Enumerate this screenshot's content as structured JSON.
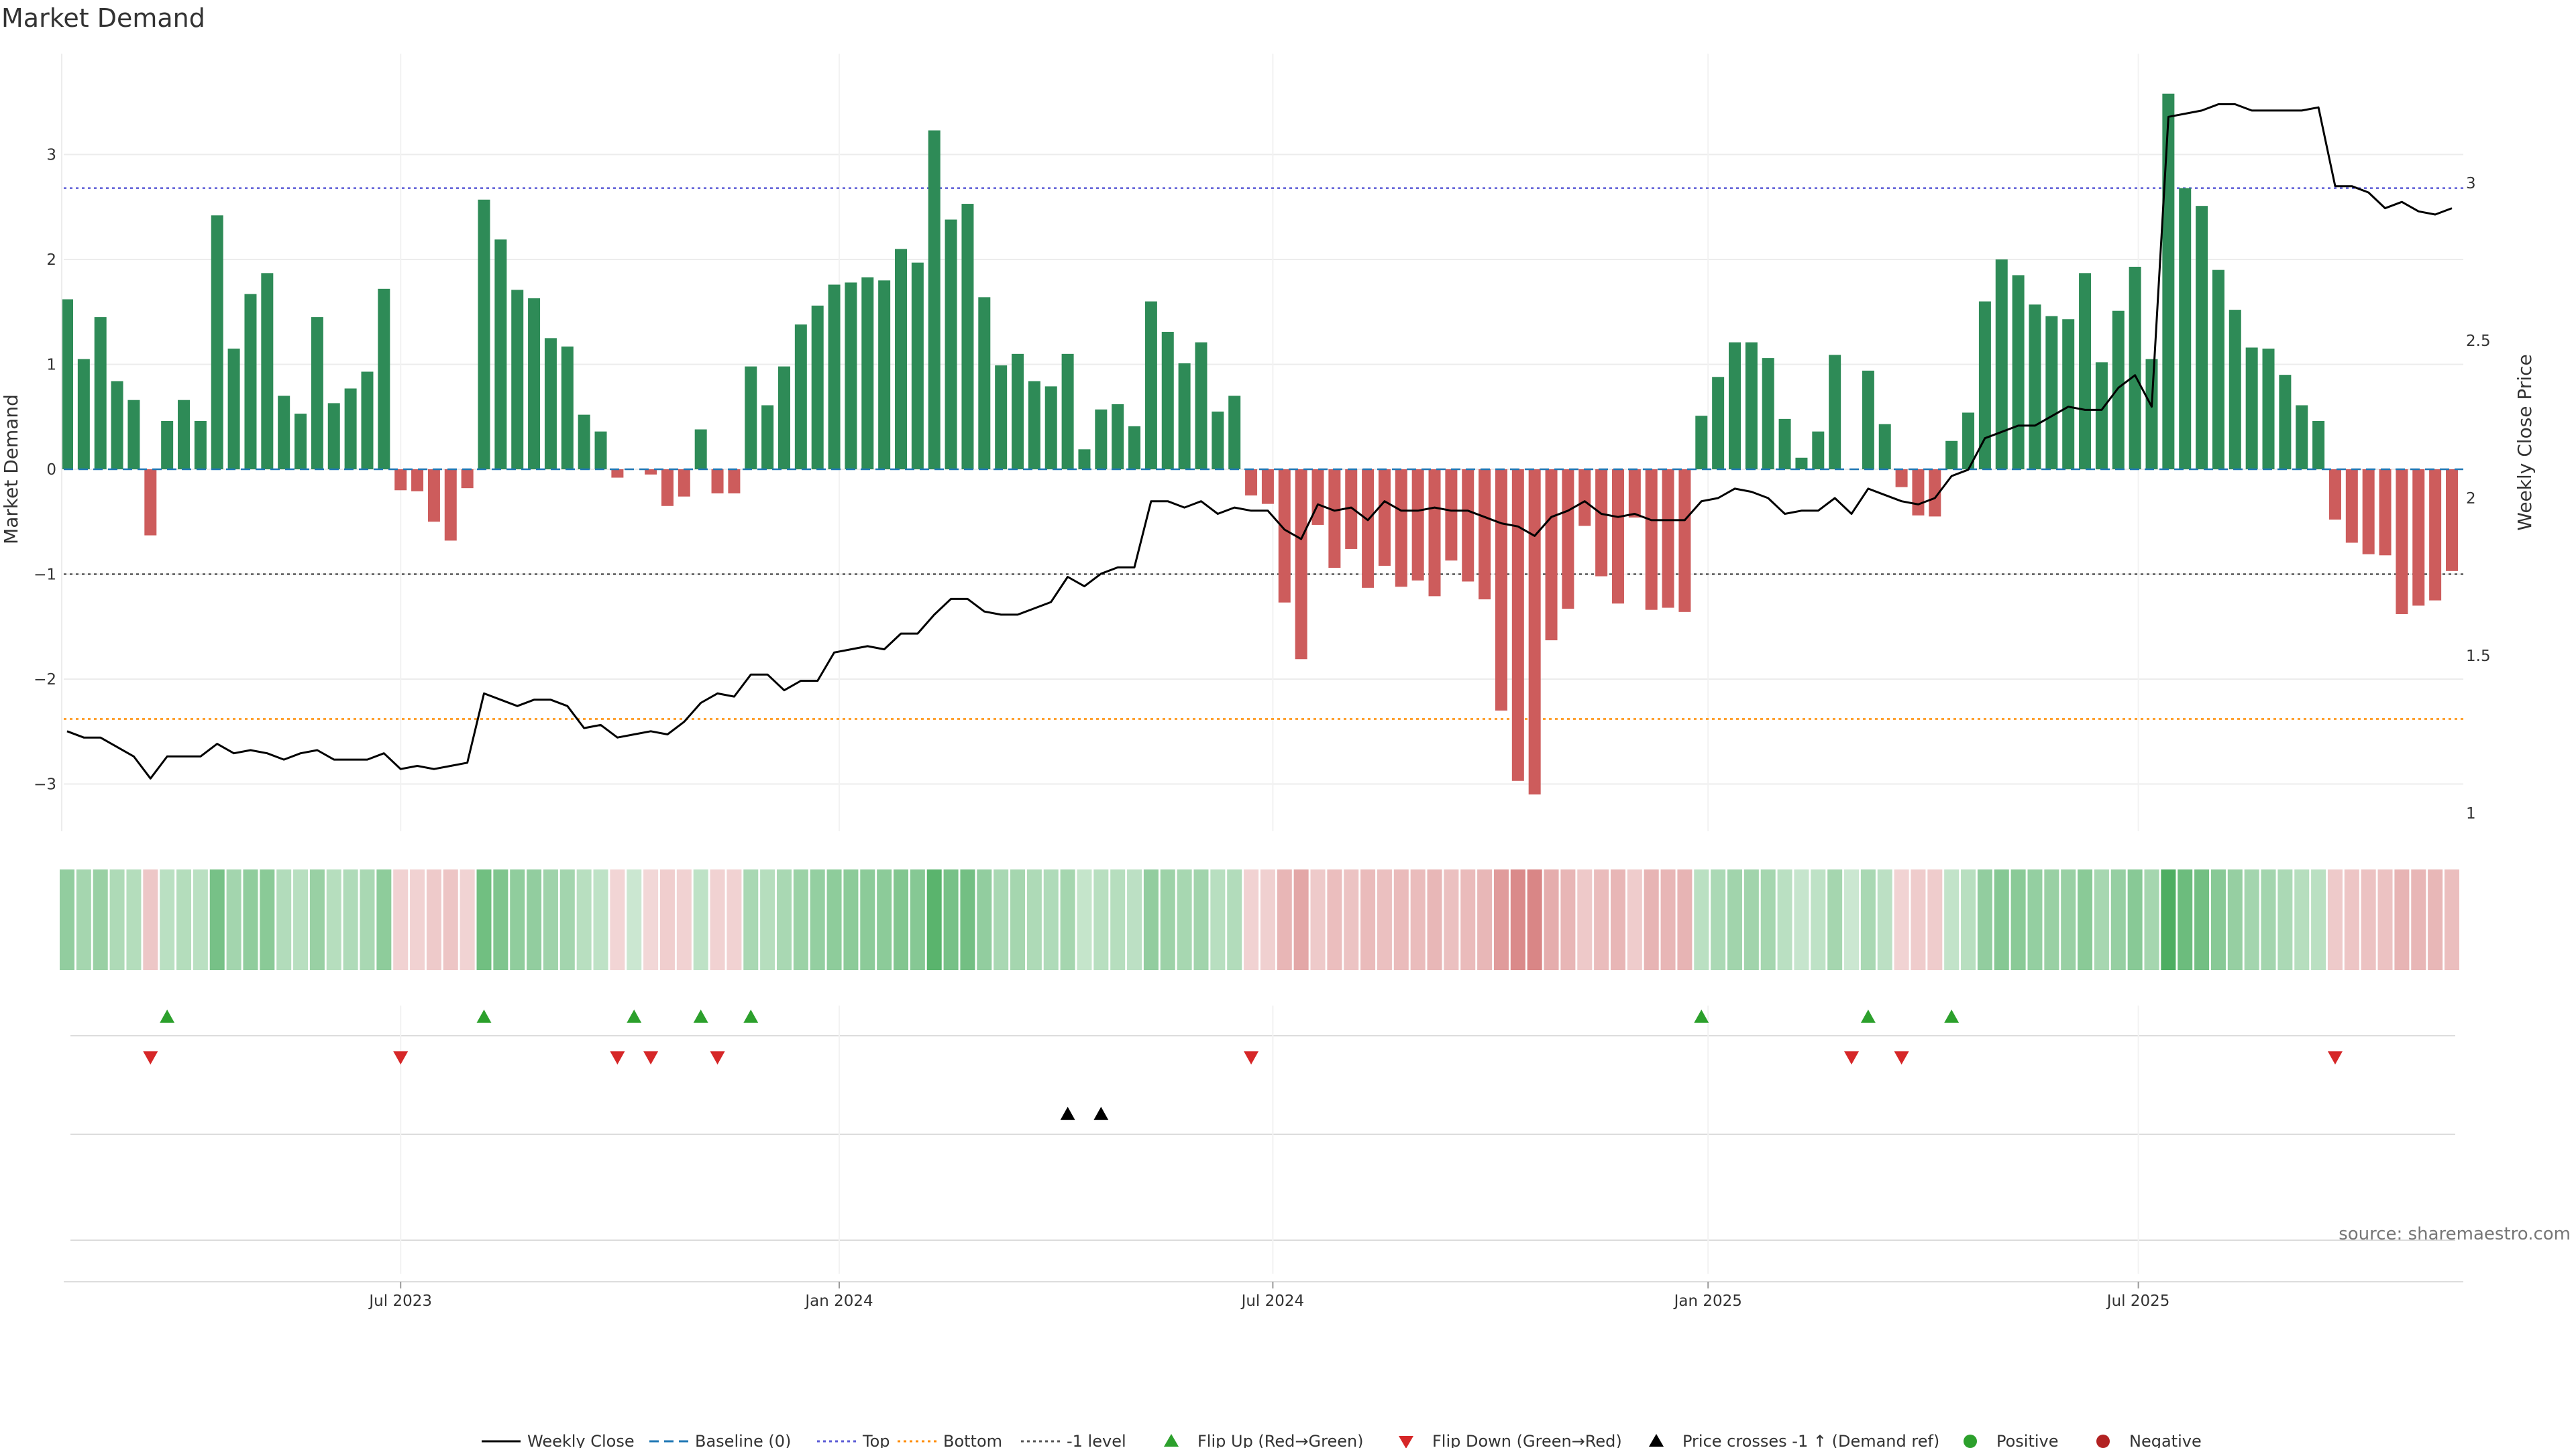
{
  "chart_data": {
    "type": "bar",
    "title": "Market Demand",
    "ylabel": "Market Demand",
    "y2label": "Weekly Close Price",
    "ylim": [
      -3.5,
      4.0
    ],
    "y2lim": [
      0.95,
      3.4
    ],
    "yticks": [
      "3",
      "2",
      "1",
      "0",
      "−1",
      "−2",
      "−3"
    ],
    "yticks_values": [
      3,
      2,
      1,
      0,
      -1,
      -2,
      -3
    ],
    "y2ticks": [
      "3",
      "2.5",
      "2",
      "1.5",
      "1"
    ],
    "y2ticks_values": [
      3,
      2.5,
      2,
      1.5,
      1
    ],
    "xticks": [
      {
        "label": "Jul 2023",
        "week": 20
      },
      {
        "label": "Jan 2024",
        "week": 46.3
      },
      {
        "label": "Jul 2024",
        "week": 72.3
      },
      {
        "label": "Jan 2025",
        "week": 98.4
      },
      {
        "label": "Jul 2025",
        "week": 124.2
      }
    ],
    "reference_lines": {
      "top": 2.68,
      "bottom": -2.38,
      "minus_one": -1,
      "baseline": 0
    },
    "demand": [
      1.62,
      1.05,
      1.45,
      0.84,
      0.66,
      -0.63,
      0.46,
      0.66,
      0.46,
      2.42,
      1.15,
      1.67,
      1.87,
      0.7,
      0.53,
      1.45,
      0.63,
      0.77,
      0.93,
      1.72,
      -0.2,
      -0.21,
      -0.5,
      -0.68,
      -0.18,
      2.57,
      2.19,
      1.71,
      1.63,
      1.25,
      1.17,
      0.52,
      0.36,
      -0.08,
      0.0,
      -0.05,
      -0.35,
      -0.26,
      0.38,
      -0.23,
      -0.23,
      0.98,
      0.61,
      0.98,
      1.38,
      1.56,
      1.76,
      1.78,
      1.83,
      1.8,
      2.1,
      1.97,
      3.23,
      2.38,
      2.53,
      1.64,
      0.99,
      1.1,
      0.84,
      0.79,
      1.1,
      0.19,
      0.57,
      0.62,
      0.41,
      1.6,
      1.31,
      1.01,
      1.21,
      0.55,
      0.7,
      -0.25,
      -0.33,
      -1.27,
      -1.81,
      -0.53,
      -0.94,
      -0.76,
      -1.13,
      -0.92,
      -1.12,
      -1.06,
      -1.21,
      -0.87,
      -1.07,
      -1.24,
      -2.3,
      -2.97,
      -3.1,
      -1.63,
      -1.33,
      -0.54,
      -1.02,
      -1.28,
      -0.46,
      -1.34,
      -1.32,
      -1.36,
      0.51,
      0.88,
      1.21,
      1.21,
      1.06,
      0.48,
      0.11,
      0.36,
      1.09,
      0.0,
      0.94,
      0.43,
      -0.17,
      -0.44,
      -0.45,
      0.27,
      0.54,
      1.6,
      2.0,
      1.85,
      1.57,
      1.46,
      1.43,
      1.87,
      1.02,
      1.51,
      1.93,
      1.05,
      3.58,
      2.68,
      2.51,
      1.9,
      1.52,
      1.16,
      1.15,
      0.9,
      0.61,
      0.46,
      -0.48,
      -0.7,
      -0.81,
      -0.82,
      -1.38,
      -1.3,
      -1.25,
      -0.97
    ],
    "close": [
      1.26,
      1.24,
      1.24,
      1.21,
      1.18,
      1.11,
      1.18,
      1.18,
      1.18,
      1.22,
      1.19,
      1.2,
      1.19,
      1.17,
      1.19,
      1.2,
      1.17,
      1.17,
      1.17,
      1.19,
      1.14,
      1.15,
      1.14,
      1.15,
      1.16,
      1.38,
      1.36,
      1.34,
      1.36,
      1.36,
      1.34,
      1.27,
      1.28,
      1.24,
      1.25,
      1.26,
      1.25,
      1.29,
      1.35,
      1.38,
      1.37,
      1.44,
      1.44,
      1.39,
      1.42,
      1.42,
      1.51,
      1.52,
      1.53,
      1.52,
      1.57,
      1.57,
      1.63,
      1.68,
      1.68,
      1.64,
      1.63,
      1.63,
      1.65,
      1.67,
      1.75,
      1.72,
      1.76,
      1.78,
      1.78,
      1.99,
      1.99,
      1.97,
      1.99,
      1.95,
      1.97,
      1.96,
      1.96,
      1.9,
      1.87,
      1.98,
      1.96,
      1.97,
      1.93,
      1.99,
      1.96,
      1.96,
      1.97,
      1.96,
      1.96,
      1.94,
      1.92,
      1.91,
      1.88,
      1.94,
      1.96,
      1.99,
      1.95,
      1.94,
      1.95,
      1.93,
      1.93,
      1.93,
      1.99,
      2.0,
      2.03,
      2.02,
      2.0,
      1.95,
      1.96,
      1.96,
      2.0,
      1.95,
      2.03,
      2.01,
      1.99,
      1.98,
      2.0,
      2.07,
      2.09,
      2.19,
      2.21,
      2.23,
      2.23,
      2.26,
      2.29,
      2.28,
      2.28,
      2.35,
      2.39,
      2.29,
      3.21,
      3.22,
      3.23,
      3.25,
      3.25,
      3.23,
      3.23,
      3.23,
      3.23,
      3.24,
      2.99,
      2.99,
      2.97,
      2.92,
      2.94,
      2.91,
      2.9,
      2.92
    ],
    "flip_up_weeks": [
      6,
      25,
      34,
      38,
      41,
      98,
      108,
      113
    ],
    "flip_down_weeks": [
      5,
      20,
      33,
      35,
      39,
      71,
      107,
      110,
      136
    ],
    "price_cross_weeks": [
      60,
      62
    ]
  },
  "legend": [
    {
      "label": "Weekly Close",
      "kind": "line",
      "color": "#000000"
    },
    {
      "label": "Baseline (0)",
      "kind": "dash",
      "color": "#1f77b4"
    },
    {
      "label": "Top",
      "kind": "dot",
      "color": "#5b5bd6"
    },
    {
      "label": "Bottom",
      "kind": "dot",
      "color": "#ff8c00"
    },
    {
      "label": "-1 level",
      "kind": "dot",
      "color": "#555555"
    },
    {
      "label": "Flip Up (Red→Green)",
      "kind": "tri-up",
      "color": "#2ca02c"
    },
    {
      "label": "Flip Down (Green→Red)",
      "kind": "tri-down",
      "color": "#d62728"
    },
    {
      "label": "Price crosses -1 ↑ (Demand ref)",
      "kind": "tri-up",
      "color": "#000000"
    },
    {
      "label": "Positive",
      "kind": "circle",
      "color": "#2ca02c"
    },
    {
      "label": "Negative",
      "kind": "circle",
      "color": "#b22222"
    }
  ],
  "colors": {
    "positive": "#2e8b57",
    "negative": "#cd5c5c",
    "grid": "#ececec"
  },
  "source": "source: sharemaestro.com"
}
